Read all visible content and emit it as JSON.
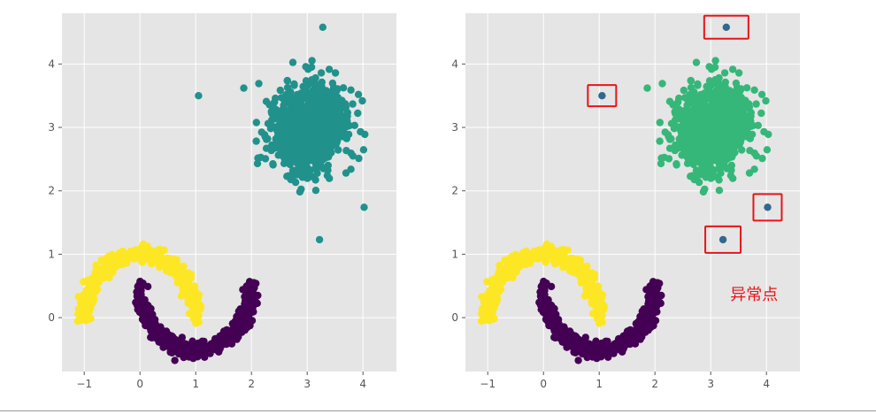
{
  "chart_data": [
    {
      "type": "scatter",
      "title": "",
      "xlabel": "",
      "ylabel": "",
      "xlim": [
        -1.4,
        4.6
      ],
      "ylim": [
        -0.85,
        4.8
      ],
      "xticks": [
        -1,
        0,
        1,
        2,
        3,
        4
      ],
      "yticks": [
        0,
        1,
        2,
        3,
        4
      ],
      "xtick_labels": [
        "−1",
        "0",
        "1",
        "2",
        "3",
        "4"
      ],
      "ytick_labels": [
        "0",
        "1",
        "2",
        "3",
        "4"
      ],
      "grid": true,
      "colors": {
        "background": "#e5e5e5",
        "grid": "#ffffff",
        "yellow": "#fde725",
        "purple": "#440154",
        "teal": "#21918c"
      },
      "series": [
        {
          "color": "#fde725",
          "shape": "upper-moon",
          "center": [
            0,
            0
          ],
          "radius": 1,
          "noise": 0.06,
          "count": 550
        },
        {
          "color": "#440154",
          "shape": "lower-moon",
          "center": [
            1,
            0.5
          ],
          "radius": 1,
          "noise": 0.06,
          "count": 550
        },
        {
          "color": "#21918c",
          "shape": "gaussian-blob",
          "center": [
            3,
            3
          ],
          "std": 0.35,
          "count": 900
        },
        {
          "color": "#21918c",
          "shape": "points",
          "points": [
            [
              1.05,
              3.5
            ],
            [
              3.28,
              4.58
            ],
            [
              4.02,
              1.74
            ],
            [
              3.22,
              1.23
            ]
          ]
        }
      ]
    },
    {
      "type": "scatter",
      "title": "",
      "xlabel": "",
      "ylabel": "",
      "xlim": [
        -1.4,
        4.6
      ],
      "ylim": [
        -0.85,
        4.8
      ],
      "xticks": [
        -1,
        0,
        1,
        2,
        3,
        4
      ],
      "yticks": [
        0,
        1,
        2,
        3,
        4
      ],
      "xtick_labels": [
        "−1",
        "0",
        "1",
        "2",
        "3",
        "4"
      ],
      "ytick_labels": [
        "0",
        "1",
        "2",
        "3",
        "4"
      ],
      "grid": true,
      "colors": {
        "background": "#e5e5e5",
        "grid": "#ffffff",
        "yellow": "#fde725",
        "purple": "#440154",
        "green": "#35b779",
        "outlier": "#31688e",
        "box": "#e8141a"
      },
      "series": [
        {
          "color": "#fde725",
          "shape": "upper-moon",
          "center": [
            0,
            0
          ],
          "radius": 1,
          "noise": 0.06,
          "count": 550
        },
        {
          "color": "#440154",
          "shape": "lower-moon",
          "center": [
            1,
            0.5
          ],
          "radius": 1,
          "noise": 0.06,
          "count": 550
        },
        {
          "color": "#35b779",
          "shape": "gaussian-blob",
          "center": [
            3,
            3
          ],
          "std": 0.35,
          "count": 900
        },
        {
          "color": "#31688e",
          "shape": "points",
          "points": [
            [
              1.05,
              3.5
            ],
            [
              3.28,
              4.58
            ],
            [
              4.02,
              1.74
            ],
            [
              3.22,
              1.23
            ]
          ]
        }
      ],
      "highlight_boxes": [
        [
          1.05,
          3.5
        ],
        [
          3.28,
          4.58
        ],
        [
          4.02,
          1.74
        ],
        [
          3.22,
          1.23
        ]
      ],
      "annotations": [
        {
          "text": "异常点",
          "x": 3.35,
          "y": 0.28
        }
      ]
    }
  ]
}
